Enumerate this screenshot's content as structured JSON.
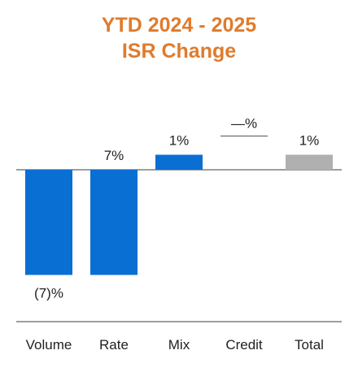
{
  "colors": {
    "title": "#E07B2C",
    "bar_blue": "#0A6FD2",
    "bar_total": "#B0B0B0",
    "axis": "#7F7F7F",
    "credit_line": "#7F7F7F"
  },
  "chart_data": {
    "type": "bar",
    "subtype": "waterfall",
    "title": "YTD  2024 - 2025",
    "subtitle": "ISR Change",
    "categories": [
      "Volume",
      "Rate",
      "Mix",
      "Credit",
      "Total"
    ],
    "values": [
      -7,
      7,
      1,
      0,
      1
    ],
    "value_labels": [
      "(7)%",
      "7%",
      "1%",
      "—%",
      "1%"
    ],
    "units": "%",
    "grid": false,
    "legend": "none"
  }
}
